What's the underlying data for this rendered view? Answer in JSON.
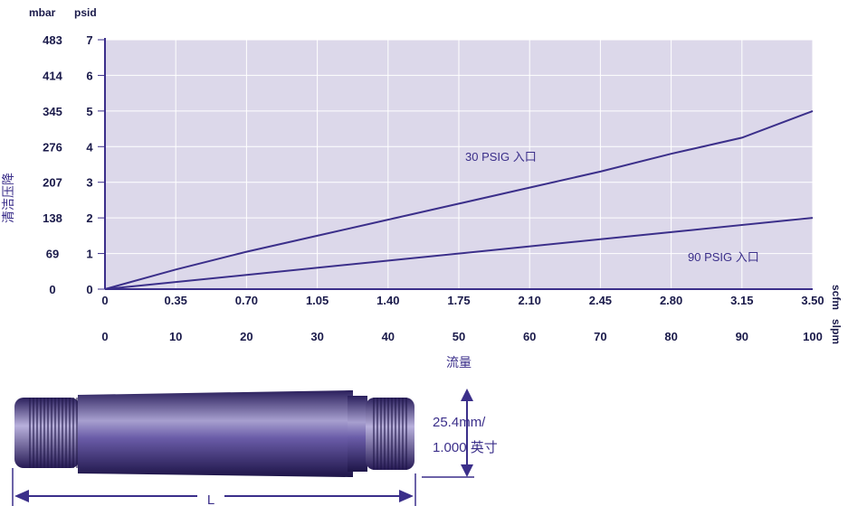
{
  "chart_data": {
    "type": "line",
    "ylabel": "清洁压降",
    "xlabel": "流量",
    "y_unit_left": "mbar",
    "y_unit_right": "psid",
    "x_unit_top": "scfm",
    "x_unit_bottom": "slpm",
    "y_ticks_mbar": [
      "483",
      "414",
      "345",
      "276",
      "207",
      "138",
      "69",
      "0"
    ],
    "y_ticks_psid": [
      "7",
      "6",
      "5",
      "4",
      "3",
      "2",
      "1",
      "0"
    ],
    "x_ticks_scfm": [
      "0",
      "0.35",
      "0.70",
      "1.05",
      "1.40",
      "1.75",
      "2.10",
      "2.45",
      "2.80",
      "3.15",
      "3.50"
    ],
    "x_ticks_slpm": [
      "0",
      "10",
      "20",
      "30",
      "40",
      "50",
      "60",
      "70",
      "80",
      "90",
      "100"
    ],
    "xlim": [
      0,
      3.5
    ],
    "ylim": [
      0,
      7
    ],
    "grid": true,
    "series": [
      {
        "name": "30 PSIG 入口",
        "x": [
          0,
          0.35,
          0.7,
          1.05,
          1.4,
          1.75,
          2.1,
          2.45,
          2.8,
          3.15,
          3.5
        ],
        "y": [
          0,
          0.55,
          1.05,
          1.5,
          1.95,
          2.4,
          2.85,
          3.3,
          3.8,
          4.25,
          5.0
        ]
      },
      {
        "name": "90 PSIG 入口",
        "x": [
          0,
          3.5
        ],
        "y": [
          0,
          2.0
        ]
      }
    ],
    "colors": {
      "plot_bg": "#dcd8ea",
      "line": "#3b2f8a",
      "grid": "#ffffff",
      "text": "#1a1a4a"
    }
  },
  "diagram": {
    "diameter_label_line1": "25.4mm/",
    "diameter_label_line2": "1.000 英寸",
    "length_label": "L",
    "body_color": "#4a3c86"
  }
}
